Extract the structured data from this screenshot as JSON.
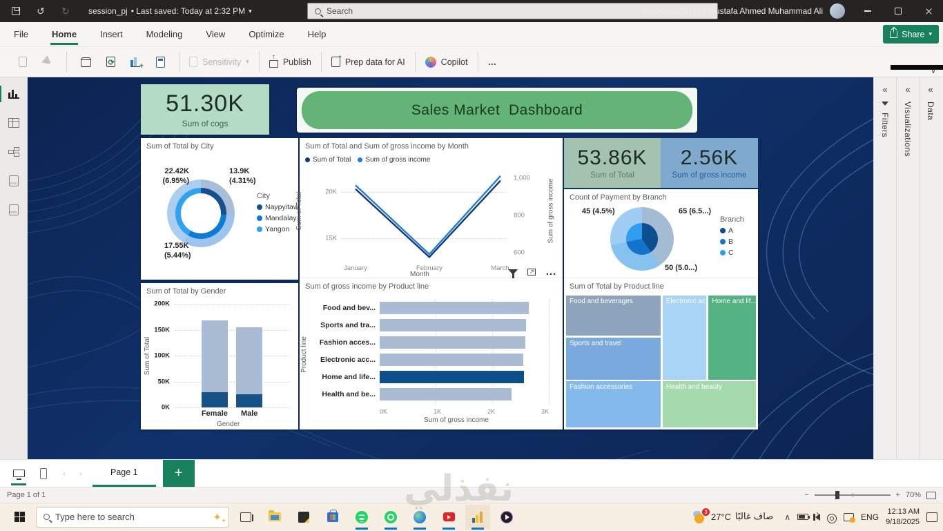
{
  "window": {
    "titlebar": {
      "doc_title": "session_pj",
      "saved_status": "• Last saved: Today at 2:32 PM",
      "search_placeholder": "Search",
      "account": "30508082201414 Mustafa Ahmed Muhammad Ali"
    },
    "menu": {
      "items": [
        "File",
        "Home",
        "Insert",
        "Modeling",
        "View",
        "Optimize",
        "Help"
      ]
    },
    "share_label": "Share",
    "ribbon": {
      "sensitivity_label": "Sensitivity",
      "publish_label": "Publish",
      "prep_label": "Prep data for AI",
      "copilot_label": "Copilot",
      "more_label": "…"
    },
    "viewrail": {
      "dax": "DAX",
      "tmdl": "TMDL"
    },
    "panes": {
      "filters": "Filters",
      "visualizations": "Visualizations",
      "data": "Data"
    },
    "pagebar": {
      "page_tab": "Page 1",
      "add": "+"
    },
    "statusbar": {
      "page_info": "Page 1 of 1",
      "zoom": "70%"
    },
    "taskbar": {
      "search_placeholder": "Type here to search",
      "temperature": "27°C",
      "weather_text": "صاف غالبًا",
      "weather_badge": "3",
      "language": "ENG",
      "time": "12:13 AM",
      "date": "9/18/2025"
    },
    "watermark": "نفذلي"
  },
  "report": {
    "title": "Sales Market  Dashboard",
    "cards": [
      {
        "value": "51.30K",
        "label": "Sum of cogs"
      },
      {
        "value": "53.86K",
        "label": "Sum of Total"
      },
      {
        "value": "2.56K",
        "label": "Sum of gross income"
      }
    ]
  },
  "chart_data": [
    {
      "type": "donut",
      "title": "Sum of Total by City",
      "legend_title": "City",
      "legend_position": "right",
      "categories": [
        "Naypyitaw",
        "Mandalay",
        "Yangon"
      ],
      "values": [
        13900,
        17550,
        22420
      ],
      "labels": [
        "13.9K\n(4.31%)",
        "17.55K\n(5.44%)",
        "22.42K\n(6.95%)"
      ],
      "colors": [
        "#a7bdd8",
        "#9cc4ec",
        "#aacdf0"
      ],
      "highlight_colors": [
        "#14508c",
        "#0d7ad6",
        "#2fa2f0"
      ]
    },
    {
      "type": "line",
      "title": "Sum of Total and Sum of gross income by Month",
      "x": [
        "January",
        "February",
        "March"
      ],
      "xlabel": "Month",
      "series": [
        {
          "name": "Sum of Total",
          "color": "#12367a",
          "axis": "left",
          "values": [
            20300,
            13000,
            21200
          ]
        },
        {
          "name": "Sum of gross income",
          "color": "#1f7fd6",
          "axis": "right",
          "values": [
            960,
            590,
            1010
          ]
        }
      ],
      "left_axis": {
        "label": "Sum of Total",
        "range": [
          12500,
          22500
        ],
        "ticks": [
          "20K",
          "15K"
        ]
      },
      "right_axis": {
        "label": "Sum of gross income",
        "range": [
          550,
          1050
        ],
        "ticks": [
          "1,000",
          "800",
          "600"
        ]
      },
      "grid": true,
      "legend_position": "top"
    },
    {
      "type": "pie",
      "title": "Count of Payment by Branch",
      "legend_title": "Branch",
      "legend_position": "right",
      "categories": [
        "A",
        "B",
        "C"
      ],
      "values": [
        65,
        50,
        45
      ],
      "labels": [
        "65 (6.5...)",
        "50 (5.0...)",
        "45 (4.5%)"
      ],
      "colors": [
        "#a4bbd4",
        "#86c2ef",
        "#9fcdf4"
      ],
      "highlight_colors": [
        "#0b4f8f",
        "#1474cc",
        "#2f9df0"
      ]
    },
    {
      "type": "bar",
      "title": "Sum of Total by Gender",
      "categories": [
        "Female",
        "Male"
      ],
      "xlabel": "Gender",
      "ylabel": "Sum of Total",
      "ylim": [
        0,
        200000
      ],
      "yticks": [
        "200K",
        "150K",
        "100K",
        "50K",
        "0K"
      ],
      "series": [
        {
          "name": "total",
          "values": [
            168000,
            155000
          ]
        },
        {
          "name": "highlighted",
          "values": [
            30000,
            25000
          ]
        }
      ]
    },
    {
      "type": "bar-horizontal",
      "title": "Sum of gross income by Product line",
      "ylabel": "Product line",
      "xlabel": "Sum of gross income",
      "xlim": [
        0,
        3000
      ],
      "xticks": [
        "0K",
        "1K",
        "2K",
        "3K"
      ],
      "categories": [
        "Food and bev...",
        "Sports and tra...",
        "Fashion acces...",
        "Electronic acc...",
        "Home and life...",
        "Health and be..."
      ],
      "values": [
        2650,
        2600,
        2580,
        2550,
        2560,
        2340
      ],
      "highlight_index": 4
    },
    {
      "type": "treemap",
      "title": "Sum of Total by Product line",
      "tiles": [
        {
          "label": "Food and beverages",
          "color": "#8ea4bd",
          "x": 0,
          "y": 0,
          "w": 50,
          "h": 31
        },
        {
          "label": "Sports and travel",
          "color": "#79a9dd",
          "x": 0,
          "y": 31.5,
          "w": 50,
          "h": 32.5
        },
        {
          "label": "Fashion accessories",
          "color": "#84b9ec",
          "x": 0,
          "y": 64.5,
          "w": 50,
          "h": 35.5
        },
        {
          "label": "Electronic ac...",
          "color": "#a9d4f5",
          "x": 50.5,
          "y": 0,
          "w": 23.5,
          "h": 64
        },
        {
          "label": "Home and lif...",
          "color": "#54b283",
          "x": 74.5,
          "y": 0,
          "w": 25.5,
          "h": 64
        },
        {
          "label": "Health and beauty",
          "color": "#a5d9ae",
          "x": 50.5,
          "y": 64.5,
          "w": 49.5,
          "h": 35.5
        }
      ]
    }
  ]
}
